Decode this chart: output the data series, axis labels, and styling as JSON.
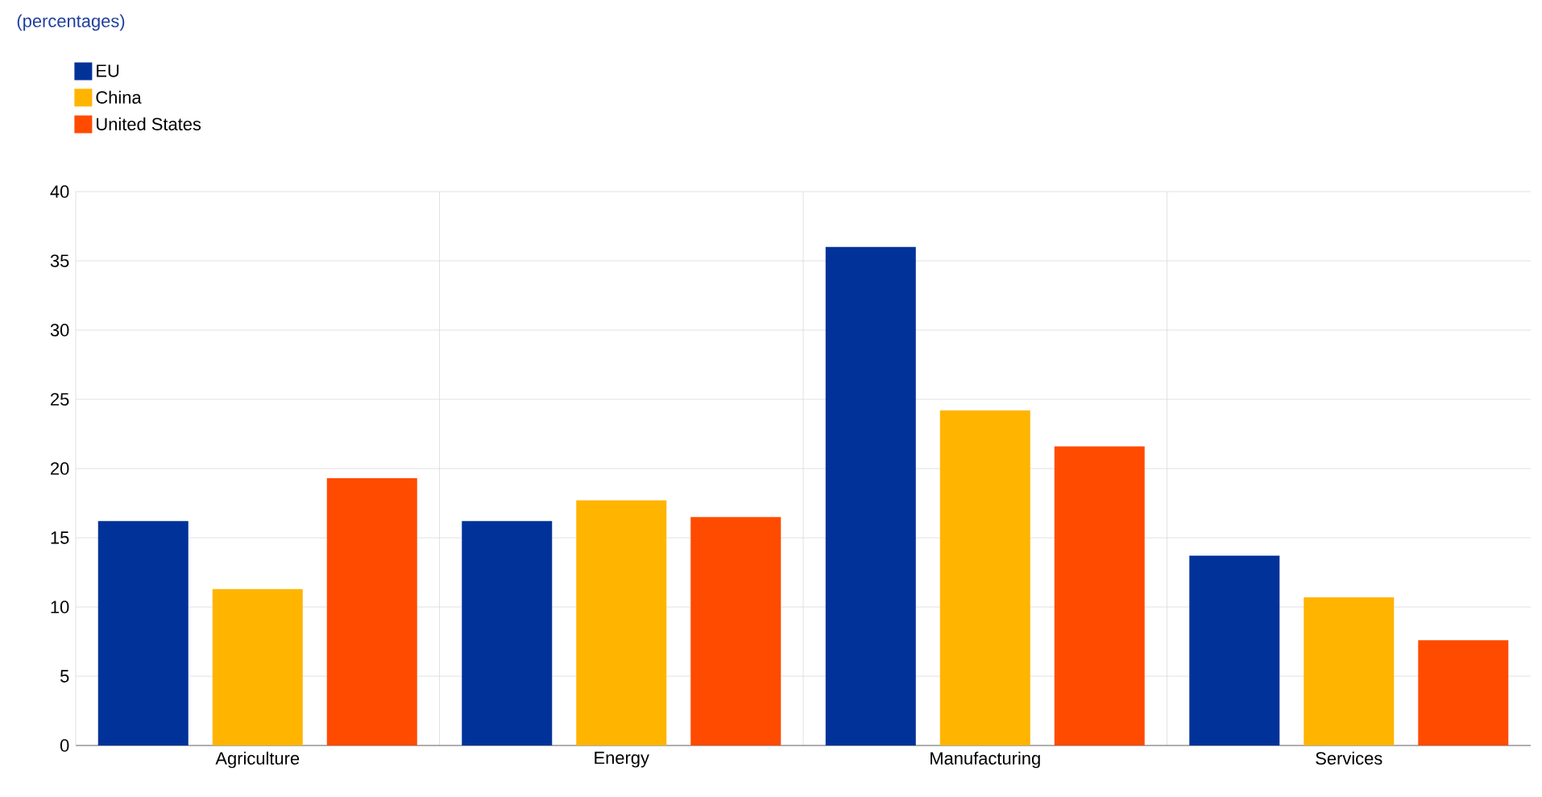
{
  "chart_data": {
    "type": "bar",
    "subtitle": "(percentages)",
    "categories": [
      "Agriculture",
      "Energy",
      "Manufacturing",
      "Services"
    ],
    "series": [
      {
        "name": "EU",
        "color": "#003299",
        "values": [
          16.2,
          16.2,
          36.0,
          13.7
        ]
      },
      {
        "name": "China",
        "color": "#ffb400",
        "values": [
          11.3,
          17.7,
          24.2,
          10.7
        ]
      },
      {
        "name": "United States",
        "color": "#ff4b00",
        "values": [
          19.3,
          16.5,
          21.6,
          7.6
        ]
      }
    ],
    "ylim": [
      0,
      40
    ],
    "yticks": [
      0,
      5,
      10,
      15,
      20,
      25,
      30,
      35,
      40
    ],
    "grid": true,
    "legend": "top left"
  }
}
